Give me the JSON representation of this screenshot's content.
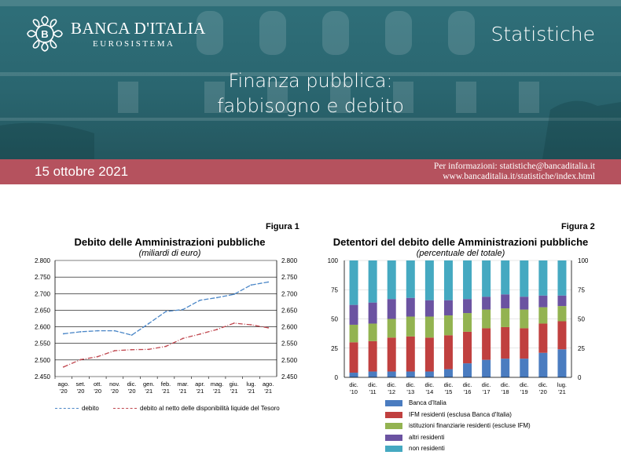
{
  "header": {
    "logo_name": "BANCA D'ITALIA",
    "logo_sub": "EUROSISTEMA",
    "series_label": "Statistiche",
    "title_line1": "Finanza pubblica:",
    "title_line2": "fabbisogno e debito"
  },
  "band": {
    "date": "15 ottobre 2021",
    "info_line1": "Per informazioni: statistiche@bancaditalia.it",
    "info_line2": "www.bancaditalia.it/statistiche/index.html"
  },
  "colors": {
    "hero": "#2a6670",
    "band": "#b5525e",
    "debito": "#4a86c7",
    "debito_netto": "#c0474f",
    "banca_italia": "#4a7cc0",
    "ifm": "#c0403f",
    "istituzioni": "#93b351",
    "altri": "#6b53a1",
    "non_residenti": "#45a9c1"
  },
  "chart_data": [
    {
      "type": "line",
      "figure_label": "Figura 1",
      "title": "Debito delle Amministrazioni pubbliche",
      "subtitle": "(miliardi di euro)",
      "categories": [
        [
          "ago.",
          "'20"
        ],
        [
          "set.",
          "'20"
        ],
        [
          "ott.",
          "'20"
        ],
        [
          "nov.",
          "'20"
        ],
        [
          "dic.",
          "'20"
        ],
        [
          "gen.",
          "'21"
        ],
        [
          "feb.",
          "'21"
        ],
        [
          "mar.",
          "'21"
        ],
        [
          "apr.",
          "'21"
        ],
        [
          "mag.",
          "'21"
        ],
        [
          "giu.",
          "'21"
        ],
        [
          "lug.",
          "'21"
        ],
        [
          "ago.",
          "'21"
        ]
      ],
      "ylim": [
        2450,
        2800
      ],
      "yticks": [
        "2.450",
        "2.500",
        "2.550",
        "2.600",
        "2.650",
        "2.700",
        "2.750",
        "2.800"
      ],
      "ytick_values": [
        2450,
        2500,
        2550,
        2600,
        2650,
        2700,
        2750,
        2800
      ],
      "grid": true,
      "series": [
        {
          "name": "debito",
          "color_key": "debito",
          "dash": "6 2",
          "values": [
            2579,
            2585,
            2588,
            2588,
            2575,
            2610,
            2646,
            2652,
            2680,
            2688,
            2698,
            2726,
            2735
          ]
        },
        {
          "name": "debito al netto delle disponibilità liquide del Tesoro",
          "color_key": "debito_netto",
          "dash": "6 2 1 2",
          "values": [
            2479,
            2501,
            2510,
            2528,
            2531,
            2532,
            2541,
            2565,
            2578,
            2592,
            2611,
            2606,
            2597
          ]
        }
      ]
    },
    {
      "type": "bar",
      "stacked": true,
      "figure_label": "Figura 2",
      "title": "Detentori del debito delle Amministrazioni pubbliche",
      "subtitle": "(percentuale del totale)",
      "categories": [
        [
          "dic.",
          "'10"
        ],
        [
          "dic.",
          "'11"
        ],
        [
          "dic.",
          "'12"
        ],
        [
          "dic.",
          "'13"
        ],
        [
          "dic.",
          "'14"
        ],
        [
          "dic.",
          "'15"
        ],
        [
          "dic.",
          "'16"
        ],
        [
          "dic.",
          "'17"
        ],
        [
          "dic.",
          "'18"
        ],
        [
          "dic.",
          "'19"
        ],
        [
          "dic.",
          "'20"
        ],
        [
          "lug.",
          "'21"
        ]
      ],
      "ylim": [
        0,
        100
      ],
      "yticks": [
        "0",
        "25",
        "50",
        "75",
        "100"
      ],
      "ytick_values": [
        0,
        25,
        50,
        75,
        100
      ],
      "series": [
        {
          "name": "Banca d'Italia",
          "color_key": "banca_italia",
          "values": [
            4,
            5,
            5,
            5,
            5,
            7,
            12,
            15,
            16,
            16,
            21,
            24
          ]
        },
        {
          "name": "IFM residenti (esclusa Banca d'Italia)",
          "color_key": "ifm",
          "values": [
            26,
            26,
            29,
            30,
            29,
            29,
            27,
            27,
            27,
            26,
            25,
            24
          ]
        },
        {
          "name": "istituzioni finanziarie residenti (escluse IFM)",
          "color_key": "istituzioni",
          "values": [
            15,
            15,
            16,
            17,
            18,
            17,
            16,
            16,
            16,
            16,
            14,
            13
          ]
        },
        {
          "name": "altri residenti",
          "color_key": "altri",
          "values": [
            17,
            18,
            17,
            16,
            14,
            13,
            12,
            11,
            12,
            11,
            10,
            9
          ]
        },
        {
          "name": "non residenti",
          "color_key": "non_residenti",
          "values": [
            38,
            36,
            33,
            32,
            34,
            34,
            33,
            31,
            29,
            31,
            30,
            30
          ]
        }
      ]
    }
  ]
}
